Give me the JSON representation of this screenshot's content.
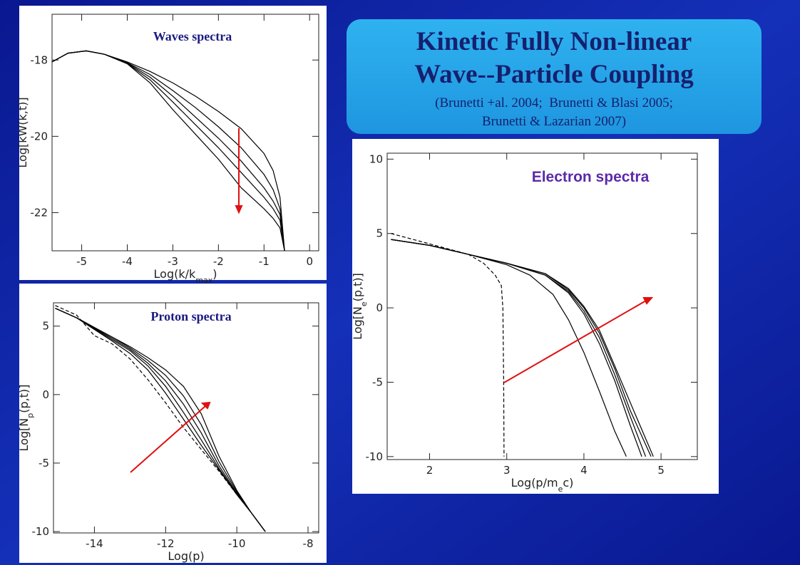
{
  "title_box": {
    "title": [
      "Kinetic Fully Non-linear",
      "Wave--Particle Coupling"
    ],
    "citation": [
      "(Brunetti +al. 2004;  Brunetti & Blasi 2005;",
      "Brunetti & Lazarian 2007)"
    ]
  },
  "chart_data": [
    {
      "type": "line",
      "annotation": "Waves spectra",
      "xlabel": [
        "Log(k/k",
        "max",
        ")"
      ],
      "ylabel": "Log[kW(k,t)]",
      "line_color": "#000000",
      "xlim": [
        -5.65,
        0.2
      ],
      "ylim": [
        -23,
        -16.8
      ],
      "xticks": [
        -5,
        -4,
        -3,
        -2,
        -1,
        0
      ],
      "yticks": [
        -18,
        -20,
        -22
      ],
      "x": [
        -5.65,
        -5.3,
        -4.9,
        -4.5,
        -4,
        -3.5,
        -3,
        -2.5,
        -2,
        -1.5,
        -1,
        -0.8,
        -0.65,
        -0.6,
        -0.55
      ],
      "series": [
        {
          "values": [
            -18.05,
            -17.82,
            -17.76,
            -17.85,
            -18.05,
            -18.3,
            -18.6,
            -18.95,
            -19.35,
            -19.8,
            -20.45,
            -20.9,
            -21.6,
            -22.3,
            -23.0
          ]
        },
        {
          "values": [
            -18.05,
            -17.82,
            -17.76,
            -17.85,
            -18.07,
            -18.38,
            -18.8,
            -19.25,
            -19.75,
            -20.3,
            -21.0,
            -21.4,
            -21.9,
            -22.5,
            -23.0
          ]
        },
        {
          "values": [
            -18.05,
            -17.82,
            -17.76,
            -17.85,
            -18.08,
            -18.45,
            -18.95,
            -19.5,
            -20.05,
            -20.65,
            -21.35,
            -21.7,
            -22.05,
            -22.55,
            -23.0
          ]
        },
        {
          "values": [
            -18.05,
            -17.82,
            -17.76,
            -17.85,
            -18.09,
            -18.52,
            -19.1,
            -19.7,
            -20.3,
            -20.95,
            -21.6,
            -21.9,
            -22.2,
            -22.6,
            -23.0
          ]
        },
        {
          "values": [
            -18.05,
            -17.82,
            -17.76,
            -17.85,
            -18.1,
            -18.6,
            -19.3,
            -19.95,
            -20.6,
            -21.35,
            -21.9,
            -22.15,
            -22.4,
            -22.7,
            -23.0
          ]
        }
      ]
    },
    {
      "type": "line",
      "annotation": "Proton spectra",
      "xlabel": "Log(p)",
      "ylabel": [
        "Log[N",
        "p",
        "(p,t)]"
      ],
      "line_color": "#000000",
      "xlim": [
        -15.15,
        -7.7
      ],
      "ylim": [
        -10.1,
        6.7
      ],
      "xticks": [
        -14,
        -12,
        -10,
        -8
      ],
      "yticks": [
        5,
        0,
        -5,
        -10
      ],
      "x": [
        -15.1,
        -14.5,
        -14,
        -13.5,
        -13,
        -12.5,
        -12,
        -11.5,
        -11,
        -10.5,
        -10,
        -9.6,
        -9.2
      ],
      "series": [
        {
          "values": [
            6.3,
            5.6,
            4.9,
            4.2,
            3.5,
            2.7,
            1.8,
            0.6,
            -1.4,
            -4.5,
            -7.0,
            -8.6,
            -10
          ]
        },
        {
          "values": [
            6.3,
            5.6,
            4.9,
            4.2,
            3.4,
            2.5,
            1.4,
            -0.1,
            -2.2,
            -4.9,
            -7.1,
            -8.6,
            -10
          ]
        },
        {
          "values": [
            6.3,
            5.6,
            4.85,
            4.1,
            3.3,
            2.3,
            1.0,
            -0.7,
            -2.8,
            -5.2,
            -7.2,
            -8.6,
            -10
          ]
        },
        {
          "values": [
            6.3,
            5.6,
            4.8,
            4.0,
            3.2,
            2.1,
            0.6,
            -1.3,
            -3.3,
            -5.4,
            -7.25,
            -8.6,
            -10
          ]
        },
        {
          "values": [
            6.3,
            5.6,
            4.75,
            3.9,
            3.0,
            1.8,
            0.1,
            -1.8,
            -3.7,
            -5.5,
            -7.3,
            -8.6,
            -10
          ]
        },
        {
          "dashed": true,
          "values": [
            6.5,
            5.8,
            4.3,
            3.7,
            2.6,
            1.1,
            -0.6,
            -2.4,
            -4.0,
            -5.6,
            -7.3,
            -8.6,
            -10
          ]
        }
      ]
    },
    {
      "type": "line",
      "annotation": "Electron spectra",
      "xlabel": [
        "Log(p/m",
        "e",
        "c)"
      ],
      "ylabel": [
        "Log[N",
        "e",
        "(p,t)]"
      ],
      "line_color": "#000000",
      "xlim": [
        1.45,
        5.47
      ],
      "ylim": [
        -10.2,
        10.4
      ],
      "xticks": [
        2,
        3,
        4,
        5
      ],
      "yticks": [
        10,
        5,
        0,
        -5,
        -10
      ],
      "series": [
        {
          "x": [
            1.5,
            2,
            2.5,
            3,
            3.3,
            3.6,
            3.8,
            4,
            4.2,
            4.4,
            4.55
          ],
          "values": [
            4.6,
            4.2,
            3.6,
            2.9,
            2.2,
            0.9,
            -0.8,
            -3,
            -5.6,
            -8.3,
            -10
          ]
        },
        {
          "x": [
            1.5,
            2,
            2.5,
            3,
            3.5,
            3.8,
            4,
            4.2,
            4.4,
            4.6,
            4.75
          ],
          "values": [
            4.6,
            4.2,
            3.6,
            3.0,
            2.2,
            1.0,
            -0.4,
            -2.4,
            -4.9,
            -7.9,
            -10
          ]
        },
        {
          "x": [
            1.5,
            2,
            2.5,
            3,
            3.5,
            3.8,
            4,
            4.2,
            4.4,
            4.6,
            4.8
          ],
          "values": [
            4.6,
            4.2,
            3.6,
            3.0,
            2.2,
            1.1,
            -0.2,
            -2.0,
            -4.5,
            -7.3,
            -10
          ]
        },
        {
          "x": [
            1.5,
            2,
            2.5,
            3,
            3.5,
            3.8,
            4,
            4.2,
            4.4,
            4.6,
            4.87
          ],
          "values": [
            4.6,
            4.2,
            3.6,
            3.0,
            2.3,
            1.2,
            0,
            -1.7,
            -4.1,
            -6.9,
            -10
          ]
        },
        {
          "x": [
            1.5,
            2,
            2.5,
            3,
            3.5,
            3.8,
            4,
            4.2,
            4.4,
            4.62,
            4.9
          ],
          "values": [
            4.6,
            4.2,
            3.6,
            3.0,
            2.3,
            1.3,
            0.1,
            -1.5,
            -3.9,
            -6.6,
            -10
          ]
        },
        {
          "dashed": true,
          "x": [
            1.5,
            2,
            2.5,
            2.7,
            2.85,
            2.93,
            2.95,
            2.96,
            2.965
          ],
          "values": [
            5.0,
            4.3,
            3.6,
            3.0,
            2.2,
            1.5,
            0,
            -5,
            -10
          ]
        }
      ]
    }
  ]
}
